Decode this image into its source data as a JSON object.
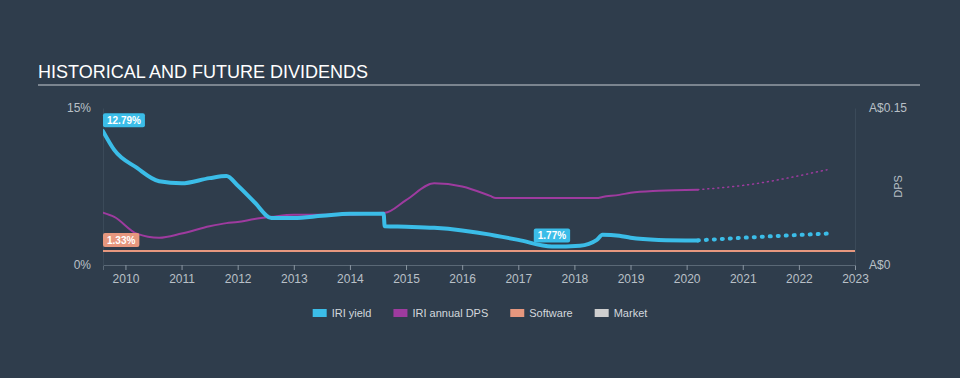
{
  "chart_data": {
    "type": "line",
    "title": "HISTORICAL AND FUTURE DIVIDENDS",
    "y2label": "DPS",
    "x": [
      2009.6,
      2009.8,
      2010.2,
      2010.6,
      2011.0,
      2011.5,
      2011.8,
      2012.0,
      2012.3,
      2012.6,
      2013.0,
      2013.5,
      2014.0,
      2014.6,
      2014.62,
      2015.0,
      2015.5,
      2016.0,
      2016.5,
      2016.6,
      2017.0,
      2017.6,
      2018.1,
      2018.4,
      2018.5,
      2018.8,
      2019.0,
      2019.5,
      2020.2,
      2021.0,
      2022.5,
      2023.0
    ],
    "xlim": [
      2009.6,
      2023.0
    ],
    "xticks": [
      2010,
      2011,
      2012,
      2013,
      2014,
      2015,
      2016,
      2017,
      2018,
      2019,
      2020,
      2021,
      2022,
      2023
    ],
    "ylim": [
      0,
      15
    ],
    "yticks": [
      {
        "value": 0,
        "label": "0%"
      },
      {
        "value": 15,
        "label": "15%"
      }
    ],
    "y2lim": [
      0,
      0.15
    ],
    "y2ticks": [
      {
        "value": 0,
        "label": "A$0"
      },
      {
        "value": 0.15,
        "label": "A$0.15"
      }
    ],
    "grid": false,
    "legend": "bottom",
    "data_labels": true,
    "series": [
      {
        "name": "IRI yield",
        "color": "#3bbde8",
        "line_style": "solid",
        "values": [
          12.79,
          11.0,
          9.3,
          8.0,
          7.8,
          8.3,
          8.5,
          7.6,
          6.0,
          4.5,
          4.5,
          4.7,
          4.9,
          4.9,
          3.7,
          3.65,
          3.55,
          3.3,
          2.9,
          2.8,
          2.4,
          1.77,
          1.85,
          2.4,
          2.9,
          2.8,
          2.6,
          2.4,
          2.35,
          null,
          null,
          null
        ],
        "value_labels": [
          "12.79%",
          null,
          null,
          null,
          null,
          null,
          null,
          null,
          null,
          null,
          null,
          null,
          null,
          null,
          null,
          null,
          null,
          null,
          null,
          null,
          null,
          "1.77%",
          null,
          null,
          null,
          null,
          null,
          null,
          null,
          null,
          null,
          null
        ]
      },
      {
        "color": "#3bbde8",
        "line_style": "dotted",
        "values": [
          null,
          null,
          null,
          null,
          null,
          null,
          null,
          null,
          null,
          null,
          null,
          null,
          null,
          null,
          null,
          null,
          null,
          null,
          null,
          null,
          null,
          null,
          null,
          null,
          null,
          null,
          null,
          null,
          2.35,
          2.6,
          3.0,
          null
        ]
      },
      {
        "name": "IRI annual DPS",
        "color": "#9e3b9f",
        "line_style": "solid",
        "axis": "y2",
        "values": [
          0.05,
          0.046,
          0.03,
          0.026,
          0.03,
          0.037,
          0.04,
          0.041,
          0.044,
          0.046,
          0.048,
          0.048,
          0.048,
          0.05,
          0.05,
          0.062,
          0.078,
          0.075,
          0.066,
          0.064,
          0.064,
          0.064,
          0.064,
          0.064,
          0.065,
          0.067,
          0.069,
          0.071,
          0.072,
          null,
          null,
          null
        ]
      },
      {
        "color": "#9e3b9f",
        "line_style": "dotted",
        "axis": "y2",
        "values": [
          null,
          null,
          null,
          null,
          null,
          null,
          null,
          null,
          null,
          null,
          null,
          null,
          null,
          null,
          null,
          null,
          null,
          null,
          null,
          null,
          null,
          null,
          null,
          null,
          null,
          null,
          null,
          null,
          0.072,
          0.076,
          0.091,
          null
        ]
      },
      {
        "name": "Software",
        "color": "#e6977e",
        "line_style": "solid",
        "values": [
          1.33,
          1.33,
          1.33,
          1.33,
          1.33,
          1.33,
          1.33,
          1.33,
          1.33,
          1.33,
          1.33,
          1.33,
          1.33,
          1.33,
          1.33,
          1.33,
          1.33,
          1.33,
          1.33,
          1.33,
          1.33,
          1.33,
          1.33,
          1.33,
          1.33,
          1.33,
          1.33,
          1.33,
          1.33,
          1.33,
          1.33,
          1.33
        ],
        "value_labels": [
          "1.33%",
          null,
          null,
          null,
          null,
          null,
          null,
          null,
          null,
          null,
          null,
          null,
          null,
          null,
          null,
          null,
          null,
          null,
          null,
          null,
          null,
          null,
          null,
          null,
          null,
          null,
          null,
          null,
          null,
          null,
          null,
          null
        ]
      },
      {
        "name": "Market",
        "color": "#cfcfcf",
        "line_style": "solid",
        "values": [
          null,
          null,
          null,
          null,
          null,
          null,
          null,
          null,
          null,
          null,
          null,
          null,
          null,
          null,
          null,
          null,
          null,
          null,
          null,
          null,
          null,
          null,
          null,
          null,
          null,
          null,
          null,
          null,
          null,
          null,
          null,
          null
        ]
      }
    ]
  }
}
